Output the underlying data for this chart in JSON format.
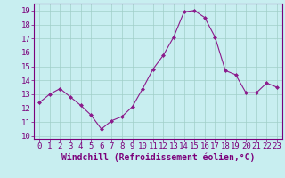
{
  "x": [
    0,
    1,
    2,
    3,
    4,
    5,
    6,
    7,
    8,
    9,
    10,
    11,
    12,
    13,
    14,
    15,
    16,
    17,
    18,
    19,
    20,
    21,
    22,
    23
  ],
  "y": [
    12.4,
    13.0,
    13.4,
    12.8,
    12.2,
    11.5,
    10.5,
    11.1,
    11.4,
    12.1,
    13.4,
    14.8,
    15.8,
    17.1,
    18.9,
    19.0,
    18.5,
    17.1,
    14.7,
    14.4,
    13.1,
    13.1,
    13.8,
    13.5
  ],
  "line_color": "#8b1a8b",
  "marker": "D",
  "marker_size": 2.0,
  "bg_color": "#c8eef0",
  "plot_bg": "#c8eef0",
  "grid_color": "#a0cfc8",
  "xlabel": "Windchill (Refroidissement éolien,°C)",
  "ylim": [
    9.8,
    19.5
  ],
  "xlim": [
    -0.5,
    23.5
  ],
  "yticks": [
    10,
    11,
    12,
    13,
    14,
    15,
    16,
    17,
    18,
    19
  ],
  "xticks": [
    0,
    1,
    2,
    3,
    4,
    5,
    6,
    7,
    8,
    9,
    10,
    11,
    12,
    13,
    14,
    15,
    16,
    17,
    18,
    19,
    20,
    21,
    22,
    23
  ],
  "xlabel_fontsize": 7.0,
  "tick_fontsize": 6.5,
  "label_color": "#7b007b",
  "spine_color": "#7b007b",
  "linewidth": 0.8
}
